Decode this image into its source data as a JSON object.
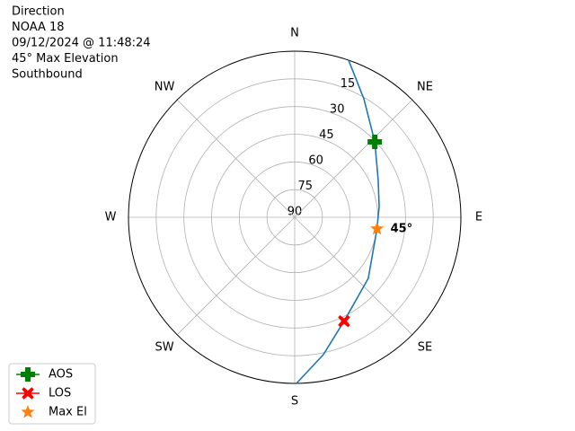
{
  "chart_data": {
    "type": "polar",
    "title_lines": [
      "Direction",
      "NOAA 18",
      "09/12/2024 @ 11:48:24",
      "45° Max Elevation",
      "Southbound"
    ],
    "xticks": [
      {
        "value": 0,
        "label": "N"
      },
      {
        "value": 45,
        "label": "NE"
      },
      {
        "value": 90,
        "label": "E"
      },
      {
        "value": 135,
        "label": "SE"
      },
      {
        "value": 180,
        "label": "S"
      },
      {
        "value": 225,
        "label": "SW"
      },
      {
        "value": 270,
        "label": "W"
      },
      {
        "value": 315,
        "label": "NW"
      }
    ],
    "ylim": [
      90,
      0
    ],
    "yticks": [
      15,
      30,
      45,
      60,
      75,
      90
    ],
    "grid": true,
    "legend": "lower left",
    "series": [
      {
        "color": "#1f77b4",
        "x": [
          18.9,
          30.3,
          46.7,
          65.7,
          82.7,
          98,
          129.7,
          154.6,
          168.2,
          179.4
        ],
        "values": [
          0,
          15.7,
          30.4,
          40.4,
          43.9,
          45,
          38.2,
          27.7,
          14,
          0
        ]
      },
      {
        "name": "AOS",
        "color": "#008000",
        "marker": "plus",
        "x": [
          46.7
        ],
        "values": [
          30.4
        ]
      },
      {
        "name": "LOS",
        "color": "#ff0000",
        "marker": "x",
        "x": [
          154.6
        ],
        "values": [
          27.7
        ]
      },
      {
        "name": "Max El",
        "color": "#ff7f0e",
        "marker": "star",
        "x": [
          98
        ],
        "values": [
          45
        ],
        "value_labels": [
          "45°"
        ]
      }
    ]
  }
}
